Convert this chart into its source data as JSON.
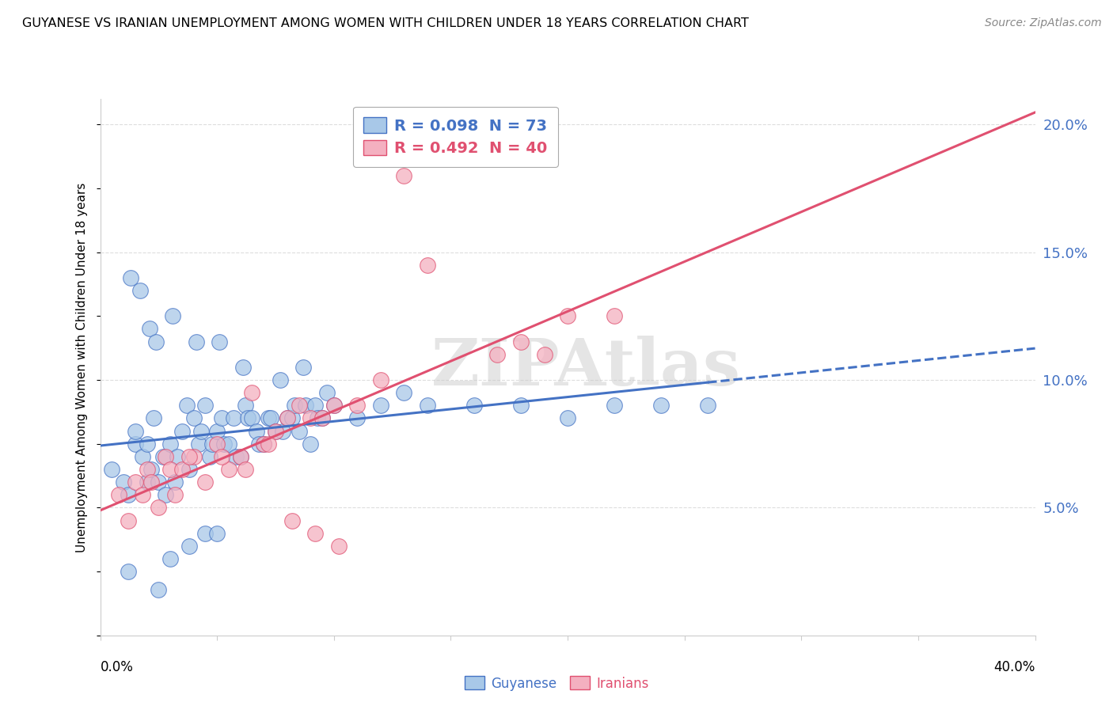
{
  "title": "GUYANESE VS IRANIAN UNEMPLOYMENT AMONG WOMEN WITH CHILDREN UNDER 18 YEARS CORRELATION CHART",
  "source": "Source: ZipAtlas.com",
  "ylabel": "Unemployment Among Women with Children Under 18 years",
  "watermark": "ZIPAtlas",
  "blue_label": "Guyanese",
  "pink_label": "Iranians",
  "blue_R": 0.098,
  "blue_N": 73,
  "pink_R": 0.492,
  "pink_N": 40,
  "blue_color": "#a8c8e8",
  "pink_color": "#f4b0c0",
  "blue_line_color": "#4472C4",
  "pink_line_color": "#e05070",
  "legend_text_blue": "R = 0.098  N = 73",
  "legend_text_pink": "R = 0.492  N = 40",
  "xlim": [
    0.0,
    40.0
  ],
  "ylim": [
    0.0,
    21.0
  ],
  "ytick_vals": [
    5.0,
    10.0,
    15.0,
    20.0
  ],
  "ytick_labels": [
    "5.0%",
    "10.0%",
    "15.0%",
    "20.0%"
  ],
  "blue_x": [
    0.5,
    1.0,
    1.2,
    1.5,
    1.5,
    1.8,
    2.0,
    2.0,
    2.2,
    2.3,
    2.5,
    2.7,
    2.8,
    3.0,
    3.2,
    3.3,
    3.5,
    3.7,
    3.8,
    4.0,
    4.2,
    4.3,
    4.5,
    4.7,
    4.8,
    5.0,
    5.2,
    5.3,
    5.5,
    5.7,
    5.8,
    6.0,
    6.2,
    6.3,
    6.5,
    6.7,
    6.8,
    7.0,
    7.2,
    7.3,
    7.5,
    7.7,
    7.8,
    8.0,
    8.2,
    8.3,
    8.5,
    8.7,
    8.8,
    9.0,
    9.2,
    9.3,
    9.5,
    9.7,
    10.0,
    11.0,
    12.0,
    13.0,
    14.0,
    16.0,
    18.0,
    20.0,
    22.0,
    24.0,
    26.0,
    1.3,
    1.7,
    2.1,
    2.4,
    3.1,
    4.1,
    5.1,
    6.1
  ],
  "blue_y": [
    6.5,
    6.0,
    5.5,
    7.5,
    8.0,
    7.0,
    6.0,
    7.5,
    6.5,
    8.5,
    6.0,
    7.0,
    5.5,
    7.5,
    6.0,
    7.0,
    8.0,
    9.0,
    6.5,
    8.5,
    7.5,
    8.0,
    9.0,
    7.0,
    7.5,
    8.0,
    8.5,
    7.5,
    7.5,
    8.5,
    7.0,
    7.0,
    9.0,
    8.5,
    8.5,
    8.0,
    7.5,
    7.5,
    8.5,
    8.5,
    8.0,
    10.0,
    8.0,
    8.5,
    8.5,
    9.0,
    8.0,
    10.5,
    9.0,
    7.5,
    9.0,
    8.5,
    8.5,
    9.5,
    9.0,
    8.5,
    9.0,
    9.5,
    9.0,
    9.0,
    9.0,
    8.5,
    9.0,
    9.0,
    9.0,
    14.0,
    13.5,
    12.0,
    11.5,
    12.5,
    11.5,
    11.5,
    10.5
  ],
  "blue_low_x": [
    1.2,
    2.5,
    3.0,
    3.8,
    4.5,
    5.0
  ],
  "blue_low_y": [
    2.5,
    1.8,
    3.0,
    3.5,
    4.0,
    4.0
  ],
  "pink_x": [
    0.8,
    1.2,
    1.5,
    2.0,
    2.5,
    2.8,
    3.0,
    3.2,
    3.5,
    4.0,
    4.5,
    5.0,
    5.5,
    6.0,
    6.5,
    7.0,
    7.5,
    8.0,
    8.5,
    9.0,
    9.5,
    10.0,
    11.0,
    12.0,
    13.0,
    14.0,
    17.0,
    18.0,
    19.0,
    20.0,
    22.0,
    1.8,
    2.2,
    3.8,
    5.2,
    6.2,
    7.2,
    8.2,
    9.2,
    10.2
  ],
  "pink_y": [
    5.5,
    4.5,
    6.0,
    6.5,
    5.0,
    7.0,
    6.5,
    5.5,
    6.5,
    7.0,
    6.0,
    7.5,
    6.5,
    7.0,
    9.5,
    7.5,
    8.0,
    8.5,
    9.0,
    8.5,
    8.5,
    9.0,
    9.0,
    10.0,
    18.0,
    14.5,
    11.0,
    11.5,
    11.0,
    12.5,
    12.5,
    5.5,
    6.0,
    7.0,
    7.0,
    6.5,
    7.5,
    4.5,
    4.0,
    3.5
  ]
}
